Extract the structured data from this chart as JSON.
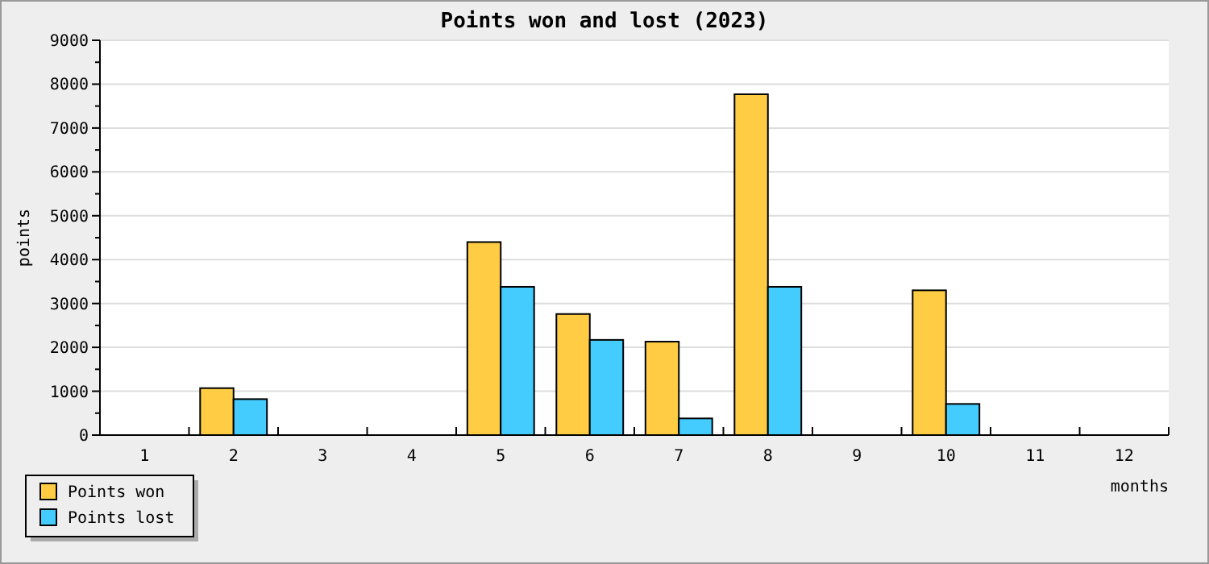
{
  "chart_data": {
    "type": "bar",
    "title": "Points won and lost (2023)",
    "xlabel": "months",
    "ylabel": "points",
    "categories": [
      "1",
      "2",
      "3",
      "4",
      "5",
      "6",
      "7",
      "8",
      "9",
      "10",
      "11",
      "12"
    ],
    "series": [
      {
        "name": "Points won",
        "color": "#ffcc44",
        "values": [
          0,
          1070,
          0,
          0,
          4400,
          2760,
          2130,
          7770,
          0,
          3300,
          0,
          0
        ]
      },
      {
        "name": "Points lost",
        "color": "#44ccff",
        "values": [
          0,
          820,
          0,
          0,
          3380,
          2170,
          380,
          3380,
          0,
          710,
          0,
          0
        ]
      }
    ],
    "ylim": [
      0,
      9000
    ],
    "yticks": [
      0,
      {
        "value": 500,
        "label": null
      },
      1000,
      {
        "value": 1500,
        "label": null
      },
      2000,
      {
        "value": 2500,
        "label": null
      },
      3000,
      {
        "value": 3500,
        "label": null
      },
      4000,
      {
        "value": 4500,
        "label": null
      },
      5000,
      {
        "value": 5500,
        "label": null
      },
      6000,
      {
        "value": 6500,
        "label": null
      },
      7000,
      {
        "value": 7500,
        "label": null
      },
      8000,
      {
        "value": 8500,
        "label": null
      },
      9000
    ],
    "grid": "y",
    "legend": "bottom left"
  }
}
